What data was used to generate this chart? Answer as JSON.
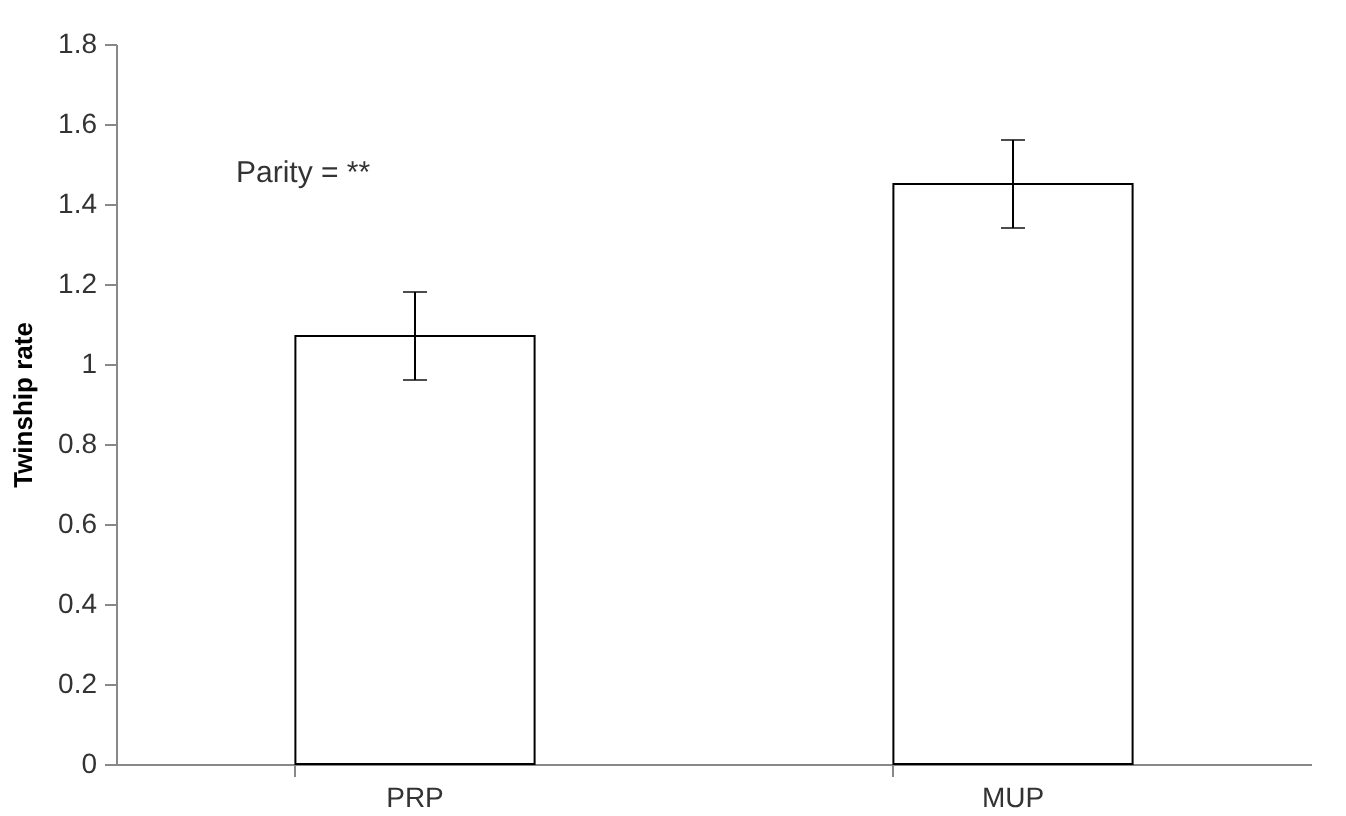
{
  "chart_data": {
    "type": "bar",
    "ylabel": "Twinship rate",
    "categories": [
      "PRP",
      "MUP"
    ],
    "values": [
      1.07,
      1.45
    ],
    "errors": [
      [
        0.96,
        1.18
      ],
      [
        1.34,
        1.56
      ]
    ],
    "color": "#ffffff",
    "ylim": [
      0,
      1.8
    ],
    "yticks": [
      0,
      0.2,
      0.4,
      0.6,
      0.8,
      1,
      1.2,
      1.4,
      1.6,
      1.8
    ],
    "grid": false,
    "annotations": [
      "Parity = **"
    ]
  }
}
